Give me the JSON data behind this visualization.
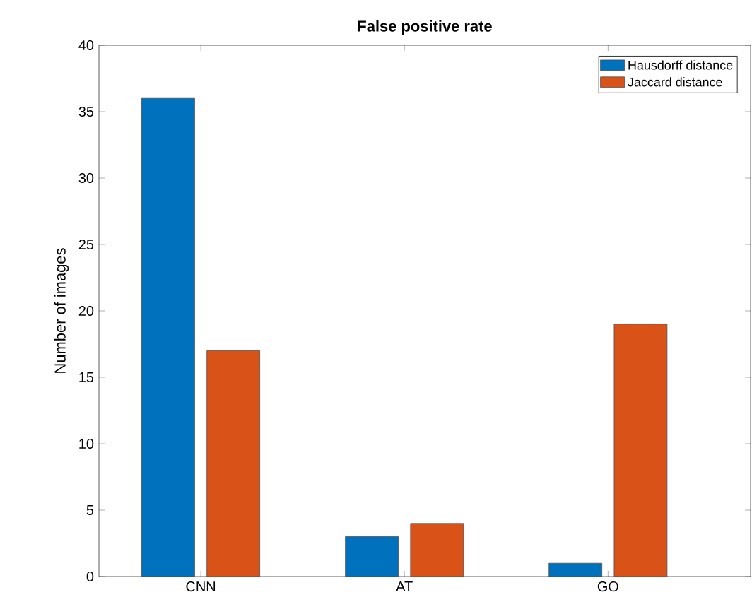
{
  "chart_data": {
    "type": "bar",
    "title": "False positive rate",
    "ylabel": "Number of images",
    "categories": [
      "CNN",
      "AT",
      "GO"
    ],
    "series": [
      {
        "name": "Hausdorff distance",
        "color": "#0072bd",
        "values": [
          36,
          3,
          1
        ]
      },
      {
        "name": "Jaccard distance",
        "color": "#d95319",
        "values": [
          17,
          4,
          19
        ]
      }
    ],
    "ylim": [
      0,
      40
    ],
    "yticks": [
      0,
      5,
      10,
      15,
      20,
      25,
      30,
      35,
      40
    ],
    "legend": "top right",
    "grid": false
  }
}
